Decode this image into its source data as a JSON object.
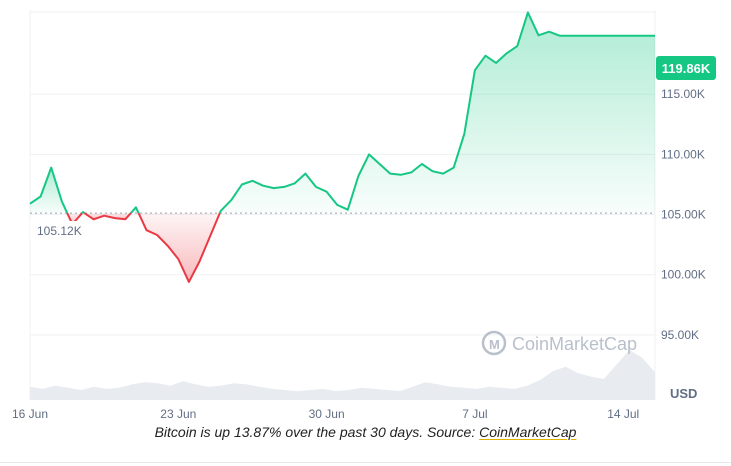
{
  "chart_data": {
    "type": "line",
    "x_ticks": [
      "16 Jun",
      "23 Jun",
      "30 Jun",
      "7 Jul",
      "14 Jul"
    ],
    "y_ticks": [
      "95.00K",
      "100.00K",
      "105.00K",
      "110.00K",
      "115.00K"
    ],
    "ylim": [
      90000,
      122000
    ],
    "baseline": 105120,
    "baseline_label": "105.12K",
    "current_label": "119.86K",
    "y_unit_label": "USD",
    "watermark": "CoinMarketCap",
    "grid": true,
    "series": [
      {
        "x": [
          0,
          0.5,
          1,
          1.5,
          2,
          2.5,
          3,
          3.5,
          4,
          4.5,
          5,
          5.5,
          6,
          6.5,
          7,
          7.5,
          8,
          8.5,
          9,
          9.5,
          10,
          10.5,
          11,
          11.5,
          12,
          12.5,
          13,
          13.5,
          14,
          14.5,
          15,
          15.5,
          16,
          16.5,
          17,
          17.5,
          18,
          18.5,
          19,
          19.5,
          20,
          20.5,
          21,
          21.5,
          22,
          22.5,
          23,
          23.5,
          24,
          24.5,
          25,
          25.5,
          26,
          26.5,
          27,
          27.5,
          28,
          28.5,
          29,
          29.5
        ],
        "values": [
          105900,
          106500,
          108900,
          106100,
          104200,
          105200,
          104600,
          104900,
          104700,
          104600,
          105600,
          103700,
          103300,
          102400,
          101300,
          99400,
          101100,
          103200,
          105300,
          106200,
          107500,
          107800,
          107400,
          107200,
          107300,
          107600,
          108400,
          107300,
          106900,
          105800,
          105400,
          108200,
          110000,
          109200,
          108400,
          108300,
          108500,
          109200,
          108600,
          108400,
          108900,
          111700,
          117000,
          118200,
          117600,
          118400,
          119000,
          121800,
          119900,
          120200,
          119860,
          119860,
          119860,
          119860,
          119860,
          119860,
          119860,
          119860,
          119860,
          119860
        ],
        "up_color": "#16c784",
        "down_color": "#ea3943"
      }
    ],
    "volume": [
      1.2,
      1.0,
      1.3,
      1.1,
      0.9,
      1.2,
      1.0,
      1.1,
      1.4,
      1.6,
      1.5,
      1.3,
      1.7,
      1.4,
      1.2,
      1.3,
      1.5,
      1.4,
      1.2,
      1.0,
      0.9,
      0.8,
      0.9,
      1.0,
      0.8,
      0.9,
      1.1,
      1.0,
      0.9,
      0.8,
      1.2,
      1.6,
      1.4,
      1.2,
      1.1,
      1.0,
      1.2,
      1.1,
      1.0,
      1.3,
      1.8,
      2.6,
      3.0,
      2.4,
      2.1,
      1.9,
      3.2,
      4.5,
      3.8,
      2.5
    ]
  },
  "caption": {
    "text": "Bitcoin is up 13.87% over the past 30 days. Source: ",
    "link": "CoinMarketCap"
  }
}
